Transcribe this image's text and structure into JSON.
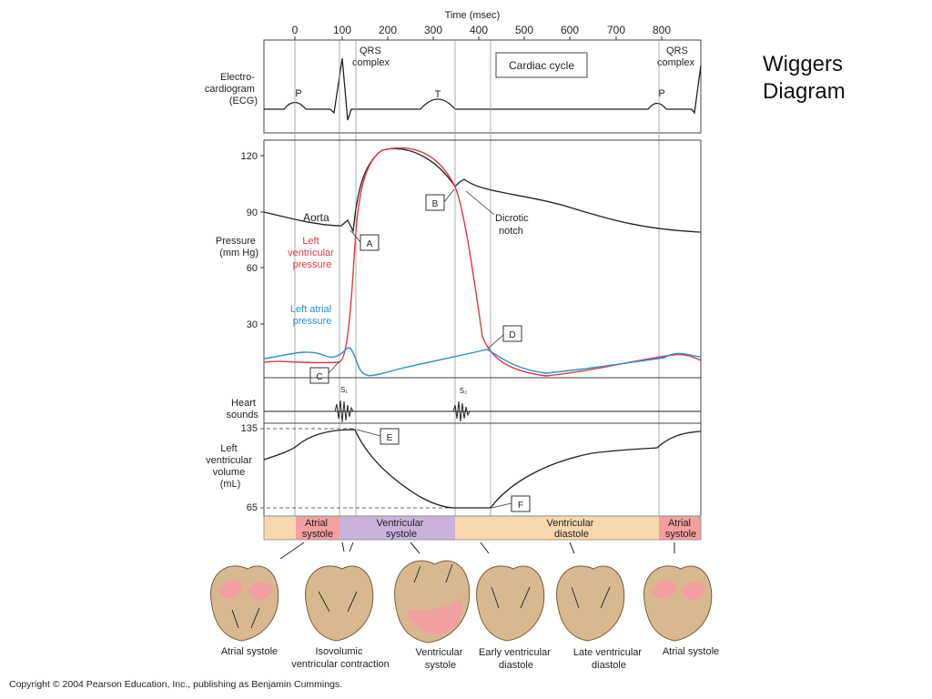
{
  "title": [
    "Wiggers",
    "Diagram"
  ],
  "time_axis": {
    "label": "Time (msec)",
    "ticks": [
      "0",
      "100",
      "200",
      "300",
      "400",
      "500",
      "600",
      "700",
      "800"
    ]
  },
  "ecg": {
    "label": [
      "Electro-",
      "cardiogram",
      "(ECG)"
    ],
    "qrs1": [
      "QRS",
      "complex"
    ],
    "qrs2": [
      "QRS",
      "complex"
    ],
    "p1": "P",
    "t": "T",
    "p2": "P",
    "cycle_box": "Cardiac cycle"
  },
  "pressure": {
    "label": [
      "Pressure",
      "(mm Hg)"
    ],
    "ticks": [
      "120",
      "90",
      "60",
      "30"
    ],
    "aorta": "Aorta",
    "lv_label": [
      "Left",
      "ventricular",
      "pressure"
    ],
    "la_label": [
      "Left atrial",
      "pressure"
    ],
    "dicrotic": [
      "Dicrotic",
      "notch"
    ],
    "box_A": "A",
    "box_B": "B",
    "box_C": "C",
    "box_D": "D"
  },
  "sounds": {
    "label": [
      "Heart",
      "sounds"
    ],
    "s1": "S₁",
    "s2": "S₂"
  },
  "volume": {
    "label": [
      "Left",
      "ventricular",
      "volume",
      "(mL)"
    ],
    "tick_high": "135",
    "tick_low": "65",
    "box_E": "E",
    "box_F": "F"
  },
  "phases": {
    "atrial1": [
      "Atrial",
      "systole"
    ],
    "ventricular_systole": [
      "Ventricular",
      "systole"
    ],
    "ventricular_diastole": [
      "Ventricular",
      "diastole"
    ],
    "atrial2": [
      "Atrial",
      "systole"
    ]
  },
  "hearts": [
    [
      "Atrial systole"
    ],
    [
      "Isovolumic",
      "ventricular contraction"
    ],
    [
      "Ventricular",
      "systole"
    ],
    [
      "Early ventricular",
      "diastole"
    ],
    [
      "Late ventricular",
      "diastole"
    ],
    [
      "Atrial systole"
    ]
  ],
  "copyright": "Copyright © 2004 Pearson Education, Inc., publishing as Benjamin Cummings.",
  "colors": {
    "lv_pressure": "#e0393e",
    "la_pressure": "#2a8fd0",
    "atrial_phase": "#f2a0a0",
    "ventricular_systole_phase": "#c9b3dd",
    "diastole_phase": "#f9d7ae",
    "heart_tissue": "#d8b98f"
  }
}
